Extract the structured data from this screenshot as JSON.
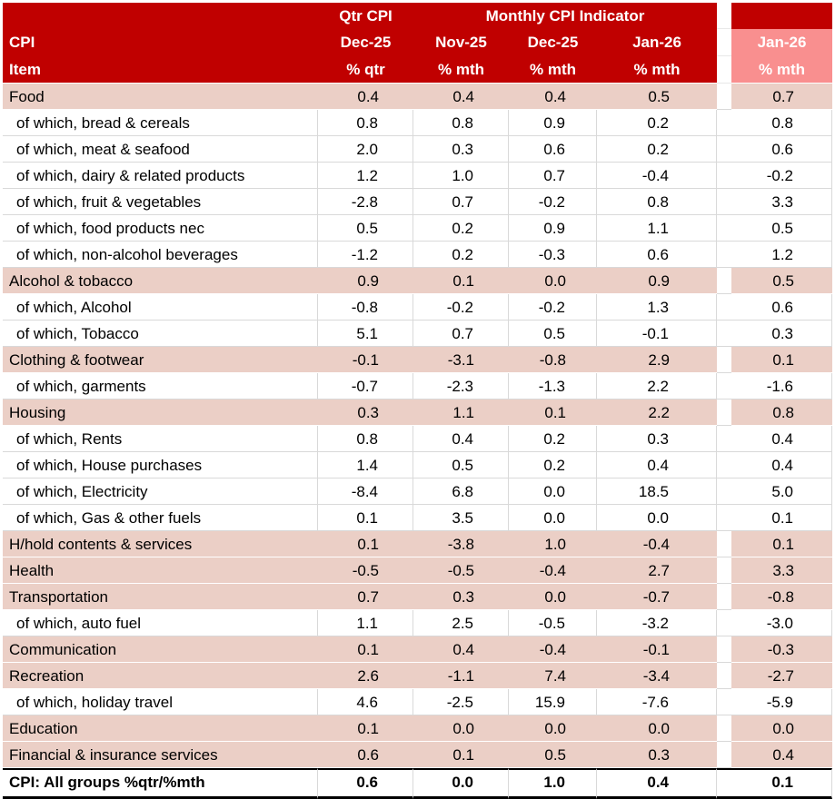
{
  "header": {
    "item_label_line1": "CPI",
    "item_label_line2": "Item",
    "qtr_group_label": "Qtr CPI",
    "monthly_group_label": "Monthly CPI Indicator",
    "period_columns": [
      {
        "period": "Dec-25",
        "unit": "% qtr"
      },
      {
        "period": "Nov-25",
        "unit": "% mth"
      },
      {
        "period": "Dec-25",
        "unit": "% mth"
      },
      {
        "period": "Jan-26",
        "unit": "% mth"
      }
    ],
    "highlight_column": {
      "period": "Jan-26",
      "unit": "% mth"
    }
  },
  "colors": {
    "header_red": "#C00000",
    "highlight_salmon": "#F98F8F",
    "band_pink": "#EBCFC6",
    "grid_gray": "#D9D9D9",
    "text": "#000000"
  },
  "chart_data": {
    "type": "table",
    "columns": [
      "CPI Item",
      "Qtr CPI Dec-25 % qtr",
      "Monthly CPI Indicator Nov-25 % mth",
      "Monthly CPI Indicator Dec-25 % mth",
      "Monthly CPI Indicator Jan-26 % mth",
      "Jan-26 % mth (highlighted)"
    ],
    "rows": [
      {
        "item": "Food",
        "type": "category",
        "values": [
          "0.4",
          "0.4",
          "0.4",
          "0.5"
        ],
        "highlight": "0.7"
      },
      {
        "item": "of which, bread & cereals",
        "type": "sub",
        "values": [
          "0.8",
          "0.8",
          "0.9",
          "0.2"
        ],
        "highlight": "0.8"
      },
      {
        "item": "of which, meat & seafood",
        "type": "sub",
        "values": [
          "2.0",
          "0.3",
          "0.6",
          "0.2"
        ],
        "highlight": "0.6"
      },
      {
        "item": "of which, dairy & related products",
        "type": "sub",
        "values": [
          "1.2",
          "1.0",
          "0.7",
          "-0.4"
        ],
        "highlight": "-0.2"
      },
      {
        "item": "of which, fruit & vegetables",
        "type": "sub",
        "values": [
          "-2.8",
          "0.7",
          "-0.2",
          "0.8"
        ],
        "highlight": "3.3"
      },
      {
        "item": "of which, food products nec",
        "type": "sub",
        "values": [
          "0.5",
          "0.2",
          "0.9",
          "1.1"
        ],
        "highlight": "0.5"
      },
      {
        "item": "of which, non-alcohol beverages",
        "type": "sub",
        "values": [
          "-1.2",
          "0.2",
          "-0.3",
          "0.6"
        ],
        "highlight": "1.2"
      },
      {
        "item": "Alcohol & tobacco",
        "type": "category",
        "values": [
          "0.9",
          "0.1",
          "0.0",
          "0.9"
        ],
        "highlight": "0.5"
      },
      {
        "item": "of which, Alcohol",
        "type": "sub",
        "values": [
          "-0.8",
          "-0.2",
          "-0.2",
          "1.3"
        ],
        "highlight": "0.6"
      },
      {
        "item": "of which, Tobacco",
        "type": "sub",
        "values": [
          "5.1",
          "0.7",
          "0.5",
          "-0.1"
        ],
        "highlight": "0.3"
      },
      {
        "item": "Clothing & footwear",
        "type": "category",
        "values": [
          "-0.1",
          "-3.1",
          "-0.8",
          "2.9"
        ],
        "highlight": "0.1"
      },
      {
        "item": "of which, garments",
        "type": "sub",
        "values": [
          "-0.7",
          "-2.3",
          "-1.3",
          "2.2"
        ],
        "highlight": "-1.6"
      },
      {
        "item": "Housing",
        "type": "category",
        "values": [
          "0.3",
          "1.1",
          "0.1",
          "2.2"
        ],
        "highlight": "0.8"
      },
      {
        "item": "of which, Rents",
        "type": "sub",
        "values": [
          "0.8",
          "0.4",
          "0.2",
          "0.3"
        ],
        "highlight": "0.4"
      },
      {
        "item": "of which, House purchases",
        "type": "sub",
        "values": [
          "1.4",
          "0.5",
          "0.2",
          "0.4"
        ],
        "highlight": "0.4"
      },
      {
        "item": "of which, Electricity",
        "type": "sub",
        "values": [
          "-8.4",
          "6.8",
          "0.0",
          "18.5"
        ],
        "highlight": "5.0"
      },
      {
        "item": "of which, Gas & other fuels",
        "type": "sub",
        "values": [
          "0.1",
          "3.5",
          "0.0",
          "0.0"
        ],
        "highlight": "0.1"
      },
      {
        "item": "H/hold contents & services",
        "type": "category",
        "values": [
          "0.1",
          "-3.8",
          "1.0",
          "-0.4"
        ],
        "highlight": "0.1"
      },
      {
        "item": "Health",
        "type": "category",
        "values": [
          "-0.5",
          "-0.5",
          "-0.4",
          "2.7"
        ],
        "highlight": "3.3"
      },
      {
        "item": "Transportation",
        "type": "category",
        "values": [
          "0.7",
          "0.3",
          "0.0",
          "-0.7"
        ],
        "highlight": "-0.8"
      },
      {
        "item": "of which, auto fuel",
        "type": "sub",
        "values": [
          "1.1",
          "2.5",
          "-0.5",
          "-3.2"
        ],
        "highlight": "-3.0"
      },
      {
        "item": "Communication",
        "type": "category",
        "values": [
          "0.1",
          "0.4",
          "-0.4",
          "-0.1"
        ],
        "highlight": "-0.3"
      },
      {
        "item": "Recreation",
        "type": "category",
        "values": [
          "2.6",
          "-1.1",
          "7.4",
          "-3.4"
        ],
        "highlight": "-2.7"
      },
      {
        "item": "of which, holiday travel",
        "type": "sub",
        "values": [
          "4.6",
          "-2.5",
          "15.9",
          "-7.6"
        ],
        "highlight": "-5.9"
      },
      {
        "item": "Education",
        "type": "category",
        "values": [
          "0.1",
          "0.0",
          "0.0",
          "0.0"
        ],
        "highlight": "0.0"
      },
      {
        "item": "Financial & insurance services",
        "type": "category",
        "values": [
          "0.6",
          "0.1",
          "0.5",
          "0.3"
        ],
        "highlight": "0.4"
      },
      {
        "item": "CPI: All groups %qtr/%mth",
        "type": "total",
        "values": [
          "0.6",
          "0.0",
          "1.0",
          "0.4"
        ],
        "highlight": "0.1"
      }
    ]
  }
}
